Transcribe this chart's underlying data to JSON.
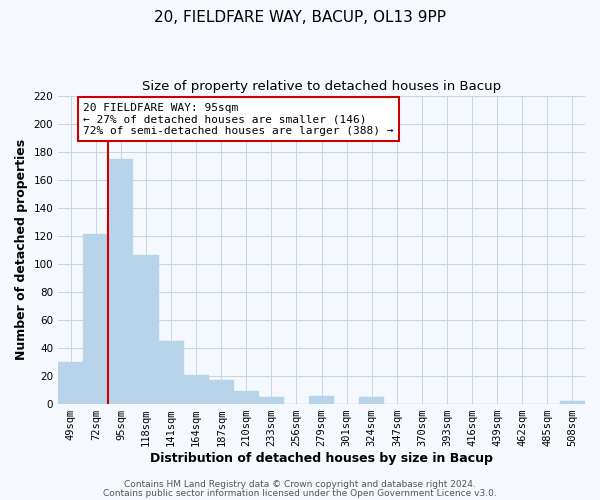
{
  "title": "20, FIELDFARE WAY, BACUP, OL13 9PP",
  "subtitle": "Size of property relative to detached houses in Bacup",
  "xlabel": "Distribution of detached houses by size in Bacup",
  "ylabel": "Number of detached properties",
  "categories": [
    "49sqm",
    "72sqm",
    "95sqm",
    "118sqm",
    "141sqm",
    "164sqm",
    "187sqm",
    "210sqm",
    "233sqm",
    "256sqm",
    "279sqm",
    "301sqm",
    "324sqm",
    "347sqm",
    "370sqm",
    "393sqm",
    "416sqm",
    "439sqm",
    "462sqm",
    "485sqm",
    "508sqm"
  ],
  "values": [
    30,
    121,
    175,
    106,
    45,
    21,
    17,
    9,
    5,
    0,
    6,
    0,
    5,
    0,
    0,
    0,
    0,
    0,
    0,
    0,
    2
  ],
  "bar_color": "#b8d4ea",
  "bar_edge_color": "#b8d4ea",
  "vline_color": "#cc0000",
  "annotation_text": "20 FIELDFARE WAY: 95sqm\n← 27% of detached houses are smaller (146)\n72% of semi-detached houses are larger (388) →",
  "annotation_box_color": "#ffffff",
  "annotation_box_edge": "#cc0000",
  "ylim": [
    0,
    220
  ],
  "yticks": [
    0,
    20,
    40,
    60,
    80,
    100,
    120,
    140,
    160,
    180,
    200,
    220
  ],
  "footer1": "Contains HM Land Registry data © Crown copyright and database right 2024.",
  "footer2": "Contains public sector information licensed under the Open Government Licence v3.0.",
  "background_color": "#f5f8fc",
  "plot_bg_color": "#f5f8fc",
  "grid_color": "#c5d5e5",
  "title_fontsize": 11,
  "subtitle_fontsize": 9.5,
  "axis_label_fontsize": 9,
  "tick_fontsize": 7.5,
  "footer_fontsize": 6.5,
  "annotation_fontsize": 8
}
